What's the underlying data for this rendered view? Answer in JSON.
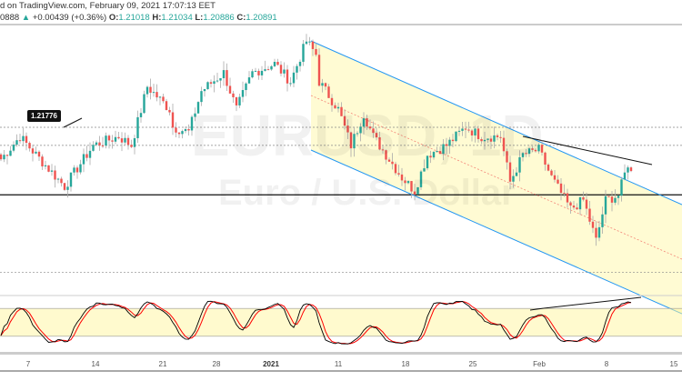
{
  "header": {
    "published": "d on TradingView.com, February 09, 2021 17:07:13 EET",
    "last": "0888",
    "change": "+0.00439 (+0.36%)",
    "o_label": "O:",
    "o": "1.21018",
    "h_label": "H:",
    "h": "1.21034",
    "l_label": "L:",
    "l": "1.20886",
    "c_label": "C:",
    "c": "1.20891"
  },
  "watermark": {
    "symbol": "EURUSD, 1D",
    "name": "Euro / U.S. Dollar"
  },
  "price_label": "1.21776",
  "levels": {
    "support": 1.2041,
    "dotted": [
      1.21776,
      1.2141,
      1.1884
    ]
  },
  "colors": {
    "up": "#26a69a",
    "down": "#ef5350",
    "channel": "#2196f3",
    "channel_fill": "#fff9c4",
    "stoch_k": "#000000",
    "stoch_d": "#ff0000"
  },
  "axis": {
    "ticks": [
      "7",
      "14",
      "21",
      "28",
      "2021",
      "11",
      "18",
      "25",
      "Feb",
      "8",
      "15"
    ]
  },
  "chart_data": {
    "type": "candlestick",
    "keypoints_bar_price": [
      [
        0,
        1.2113
      ],
      [
        6,
        1.2159
      ],
      [
        11,
        1.2122
      ],
      [
        20,
        1.2058
      ],
      [
        29,
        1.2141
      ],
      [
        37,
        1.2159
      ],
      [
        41,
        1.2141
      ],
      [
        46,
        1.226
      ],
      [
        53,
        1.2214
      ],
      [
        54,
        1.2178
      ],
      [
        59,
        1.2168
      ],
      [
        63,
        1.2251
      ],
      [
        70,
        1.2288
      ],
      [
        74,
        1.2214
      ],
      [
        79,
        1.2288
      ],
      [
        86,
        1.2306
      ],
      [
        91,
        1.227
      ],
      [
        96,
        1.2352
      ],
      [
        99,
        1.2325
      ],
      [
        100,
        1.227
      ],
      [
        106,
        1.2214
      ],
      [
        110,
        1.2141
      ],
      [
        114,
        1.2205
      ],
      [
        117,
        1.2159
      ],
      [
        126,
        1.2076
      ],
      [
        130,
        1.2049
      ],
      [
        134,
        1.2122
      ],
      [
        140,
        1.2141
      ],
      [
        146,
        1.2178
      ],
      [
        151,
        1.2159
      ],
      [
        157,
        1.2159
      ],
      [
        160,
        1.2067
      ],
      [
        164,
        1.2122
      ],
      [
        169,
        1.2132
      ],
      [
        173,
        1.2076
      ],
      [
        179,
        1.2012
      ],
      [
        183,
        1.203
      ],
      [
        187,
        1.1948
      ],
      [
        190,
        1.203
      ],
      [
        194,
        1.204
      ],
      [
        197,
        1.2104
      ],
      [
        198,
        1.2086
      ]
    ],
    "stochastic": {
      "levels": [
        80,
        20
      ]
    }
  }
}
